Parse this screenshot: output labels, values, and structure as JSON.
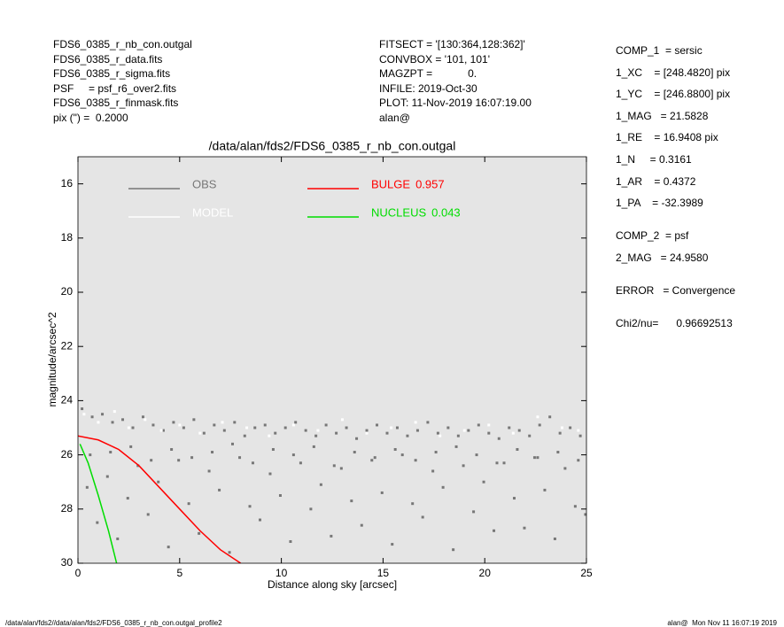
{
  "header": {
    "left": [
      "FDS6_0385_r_nb_con.outgal",
      "FDS6_0385_r_data.fits",
      "FDS6_0385_r_sigma.fits",
      "PSF     = psf_r6_over2.fits",
      "FDS6_0385_r_finmask.fits",
      "pix (\") =  0.2000"
    ],
    "middle": [
      "FITSECT = '[130:364,128:362]'",
      "CONVBOX = '101, 101'",
      "MAGZPT =            0.",
      "INFILE: 2019-Oct-30",
      "PLOT: 11-Nov-2019 16:07:19.00",
      "alan@"
    ],
    "right": [
      "COMP_1  = sersic",
      "1_XC    = [248.4820] pix",
      "1_YC    = [246.8800] pix",
      "1_MAG   = 21.5828",
      "1_RE    = 16.9408 pix",
      "1_N     = 0.3161",
      "1_AR    = 0.4372",
      "1_PA    = -32.3989",
      "COMP_2  = psf",
      "2_MAG   = 24.9580",
      "ERROR   = Convergence",
      "Chi2/nu=      0.96692513"
    ]
  },
  "footer": {
    "left": "/data/alan/fds2//data/alan/fds2/FDS6_0385_r_nb_con.outgal_profile2",
    "right": "alan@  Mon Nov 11 16:07:19 2019"
  },
  "chart_data": {
    "type": "scatter",
    "title": "/data/alan/fds2/FDS6_0385_r_nb_con.outgal",
    "x_label": "Distance along sky [arcsec]",
    "y_label": "magnitude/arcsec^2",
    "xlim": [
      0,
      25
    ],
    "xticks": [
      0,
      5,
      10,
      15,
      20,
      25
    ],
    "ylim": [
      30,
      15
    ],
    "yticks": [
      16,
      18,
      20,
      22,
      24,
      26,
      28,
      30
    ],
    "background": "#e5e5e5",
    "series": [
      {
        "name": "OBS",
        "color": "#777777",
        "mode": "markers",
        "x": [
          0.2,
          0.7,
          1.2,
          1.7,
          2.2,
          2.7,
          3.2,
          3.7,
          4.2,
          4.7,
          5.2,
          5.7,
          6.2,
          6.7,
          7.2,
          7.7,
          8.2,
          8.7,
          9.2,
          9.7,
          10.2,
          10.7,
          11.2,
          11.7,
          12.2,
          12.7,
          13.2,
          13.7,
          14.2,
          14.7,
          15.2,
          15.7,
          16.2,
          16.7,
          17.2,
          17.7,
          18.2,
          18.7,
          19.2,
          19.7,
          20.2,
          20.7,
          21.2,
          21.7,
          22.2,
          22.7,
          23.2,
          23.7,
          24.2,
          24.7,
          0.45,
          0.95,
          1.45,
          1.95,
          2.45,
          2.95,
          3.45,
          3.95,
          4.45,
          4.95,
          5.45,
          5.95,
          6.45,
          6.95,
          7.45,
          7.95,
          8.45,
          8.95,
          9.45,
          9.95,
          10.45,
          10.95,
          11.45,
          11.95,
          12.45,
          12.95,
          13.45,
          13.95,
          14.45,
          14.95,
          15.45,
          15.95,
          16.45,
          16.95,
          17.45,
          17.95,
          18.45,
          18.95,
          19.45,
          19.95,
          20.45,
          20.95,
          21.45,
          21.95,
          22.45,
          22.95,
          23.45,
          23.95,
          24.45,
          24.95,
          0.6,
          1.6,
          2.6,
          3.6,
          4.6,
          5.6,
          6.6,
          7.6,
          8.6,
          9.6,
          10.6,
          11.6,
          12.6,
          13.6,
          14.6,
          15.6,
          16.6,
          17.6,
          18.6,
          19.6,
          20.6,
          21.6,
          22.6,
          23.6,
          24.6
        ],
        "values": [
          24.3,
          24.6,
          24.5,
          24.8,
          24.7,
          25.0,
          24.6,
          24.9,
          25.1,
          24.8,
          25.0,
          24.7,
          25.2,
          24.9,
          25.1,
          24.8,
          25.3,
          25.0,
          24.9,
          25.2,
          25.0,
          24.8,
          25.1,
          25.3,
          24.9,
          25.2,
          25.0,
          25.4,
          25.1,
          24.9,
          25.2,
          25.0,
          25.3,
          25.1,
          24.8,
          25.2,
          25.0,
          25.3,
          25.1,
          24.9,
          25.2,
          25.4,
          25.0,
          25.1,
          25.3,
          24.9,
          24.6,
          25.2,
          25.0,
          25.3,
          27.2,
          28.5,
          26.8,
          29.1,
          27.6,
          26.4,
          28.2,
          27.0,
          29.4,
          26.2,
          27.8,
          28.9,
          26.6,
          27.3,
          29.6,
          26.1,
          27.9,
          28.4,
          26.7,
          27.5,
          29.2,
          26.3,
          28.0,
          27.1,
          29.0,
          26.5,
          27.7,
          28.6,
          26.2,
          27.4,
          29.3,
          26.0,
          27.8,
          28.3,
          26.6,
          27.2,
          29.5,
          26.4,
          28.1,
          27.0,
          28.8,
          26.3,
          27.6,
          28.7,
          26.1,
          27.3,
          29.1,
          26.5,
          27.9,
          28.2,
          26.0,
          25.9,
          25.7,
          26.2,
          25.8,
          26.1,
          25.9,
          25.6,
          26.3,
          25.8,
          26.0,
          25.7,
          26.4,
          25.9,
          26.1,
          25.8,
          26.2,
          25.9,
          25.7,
          26.0,
          26.3,
          25.8,
          26.1,
          25.9,
          26.2
        ]
      },
      {
        "name": "MODEL",
        "color": "#ffffff",
        "mode": "markers",
        "x": [
          0.3,
          1.0,
          1.8,
          2.5,
          3.3,
          4.1,
          5.0,
          6.0,
          7.1,
          8.3,
          9.4,
          10.6,
          11.8,
          13.0,
          14.2,
          15.4,
          16.6,
          17.8,
          19.0,
          20.2,
          21.4,
          22.6,
          23.8,
          24.6
        ],
        "values": [
          24.5,
          24.8,
          24.4,
          25.0,
          24.7,
          25.1,
          24.9,
          25.2,
          24.8,
          25.0,
          25.3,
          24.9,
          25.1,
          24.7,
          25.2,
          25.0,
          24.8,
          25.3,
          25.1,
          24.9,
          25.2,
          24.6,
          25.0,
          25.1
        ]
      },
      {
        "name": "BULGE",
        "fraction": 0.957,
        "color": "#ff0000",
        "mode": "line",
        "x": [
          0,
          1,
          2,
          3,
          4,
          5,
          6,
          7,
          8
        ],
        "values": [
          25.3,
          25.45,
          25.8,
          26.4,
          27.2,
          28.0,
          28.8,
          29.5,
          30
        ]
      },
      {
        "name": "NUCLEUS",
        "fraction": 0.043,
        "color": "#00dd00",
        "mode": "line",
        "x": [
          0.1,
          0.5,
          1,
          1.5,
          1.9
        ],
        "values": [
          25.6,
          26.3,
          27.5,
          28.8,
          30
        ]
      }
    ]
  }
}
